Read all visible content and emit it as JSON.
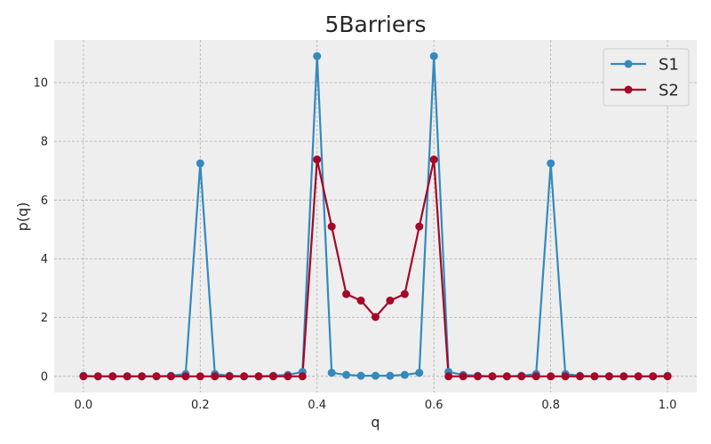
{
  "chart_data": {
    "type": "line",
    "title": "5Barriers",
    "xlabel": "q",
    "ylabel": "p(q)",
    "xlim": [
      -0.05,
      1.05
    ],
    "ylim": [
      -0.55,
      11.45
    ],
    "xticks": [
      0.0,
      0.2,
      0.4,
      0.6,
      0.8,
      1.0
    ],
    "xtick_labels": [
      "0.0",
      "0.2",
      "0.4",
      "0.6",
      "0.8",
      "1.0"
    ],
    "yticks": [
      0,
      2,
      4,
      6,
      8,
      10
    ],
    "ytick_labels": [
      "0",
      "2",
      "4",
      "6",
      "8",
      "10"
    ],
    "grid": true,
    "legend_position": "top-right",
    "x": [
      0.0,
      0.025,
      0.05,
      0.075,
      0.1,
      0.125,
      0.15,
      0.175,
      0.2,
      0.225,
      0.25,
      0.275,
      0.3,
      0.325,
      0.35,
      0.375,
      0.4,
      0.425,
      0.45,
      0.475,
      0.5,
      0.525,
      0.55,
      0.575,
      0.6,
      0.625,
      0.65,
      0.675,
      0.7,
      0.725,
      0.75,
      0.775,
      0.8,
      0.825,
      0.85,
      0.875,
      0.9,
      0.925,
      0.95,
      0.975,
      1.0
    ],
    "series": [
      {
        "name": "S1",
        "color": "#348ABD",
        "values": [
          0.02,
          0.0,
          0.0,
          0.0,
          0.0,
          0.0,
          0.02,
          0.08,
          7.25,
          0.08,
          0.02,
          0.0,
          0.0,
          0.02,
          0.05,
          0.15,
          10.9,
          0.12,
          0.05,
          0.02,
          0.02,
          0.02,
          0.05,
          0.12,
          10.9,
          0.15,
          0.05,
          0.02,
          0.0,
          0.0,
          0.02,
          0.08,
          7.25,
          0.08,
          0.02,
          0.0,
          0.0,
          0.0,
          0.0,
          0.0,
          0.02
        ]
      },
      {
        "name": "S2",
        "color": "#A60628",
        "values": [
          0.0,
          0.0,
          0.0,
          0.0,
          0.0,
          0.0,
          0.0,
          0.0,
          0.0,
          0.0,
          0.0,
          0.0,
          0.0,
          0.0,
          0.0,
          0.0,
          7.38,
          5.1,
          2.8,
          2.58,
          2.02,
          2.58,
          2.8,
          5.1,
          7.38,
          0.0,
          0.0,
          0.0,
          0.0,
          0.0,
          0.0,
          0.0,
          0.0,
          0.0,
          0.0,
          0.0,
          0.0,
          0.0,
          0.0,
          0.0,
          0.0
        ]
      }
    ]
  }
}
